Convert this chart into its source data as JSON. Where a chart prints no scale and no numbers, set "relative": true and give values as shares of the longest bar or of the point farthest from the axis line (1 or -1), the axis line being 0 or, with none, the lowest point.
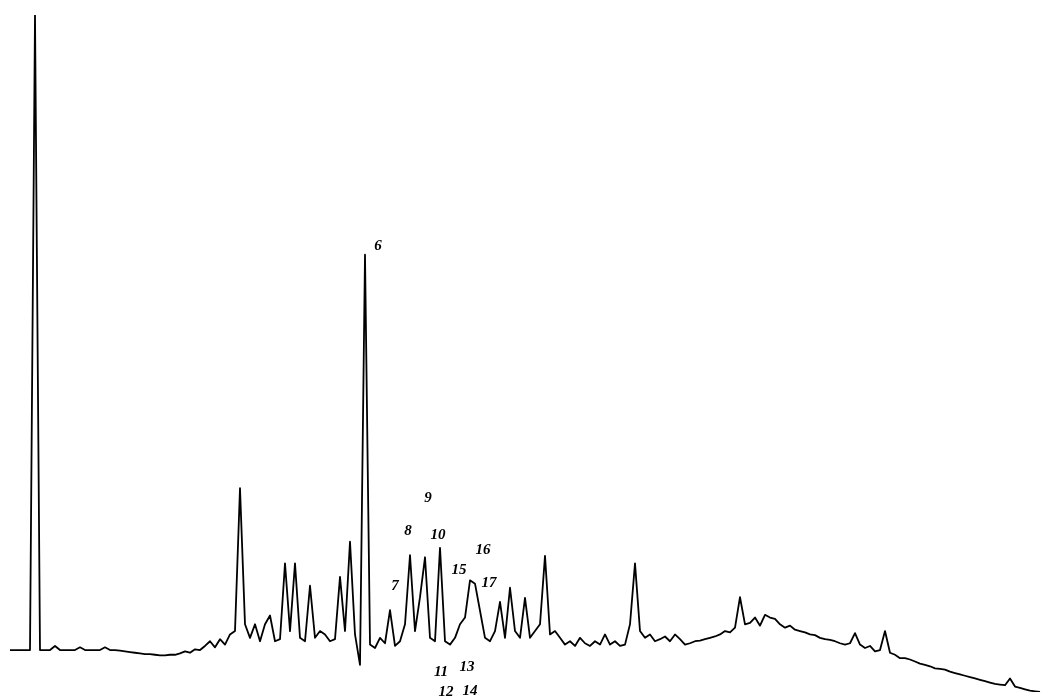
{
  "chart_data": {
    "type": "line",
    "relative": true,
    "legend": false,
    "marker": "none",
    "line_style": "solid",
    "categories": [
      null,
      null,
      null,
      null,
      null,
      null,
      null,
      null,
      null,
      null,
      null,
      null,
      null,
      null,
      null,
      null,
      null,
      null,
      null,
      null,
      null,
      null,
      null,
      null,
      null,
      null,
      null,
      null,
      null,
      null,
      null,
      null,
      null,
      null,
      null,
      null,
      null,
      null,
      null,
      null,
      null,
      null,
      null,
      null,
      null,
      null,
      null,
      null,
      null,
      null,
      null,
      null,
      null,
      null,
      null,
      null,
      null,
      null,
      null,
      null,
      null,
      null,
      null,
      null,
      null,
      null,
      null,
      null,
      null,
      null,
      null,
      null,
      null,
      null,
      null,
      null,
      null,
      null,
      null,
      null,
      null,
      null,
      null,
      null,
      null,
      null,
      null,
      null,
      null,
      null,
      null,
      null,
      null,
      null,
      null,
      null,
      null,
      null,
      null,
      null,
      null,
      null,
      null,
      null,
      null,
      null,
      null,
      null,
      null,
      null,
      null,
      null,
      null,
      null,
      null,
      null,
      null,
      null,
      null,
      null,
      null,
      null,
      null,
      null,
      null,
      null,
      null,
      null,
      null,
      null,
      null,
      null,
      null,
      null,
      null,
      null,
      null,
      null,
      null,
      null,
      null,
      null,
      null,
      null,
      null,
      null,
      null,
      null,
      null,
      null,
      null,
      null,
      null,
      null,
      null,
      null,
      null,
      null,
      null,
      null,
      null,
      null,
      null,
      null,
      null,
      null,
      null,
      null,
      null,
      null,
      null,
      null,
      null,
      null,
      null,
      null,
      null,
      null,
      null,
      null,
      null,
      null,
      null,
      null,
      null,
      null,
      null,
      null,
      null,
      null,
      null,
      null,
      null,
      null,
      null,
      null,
      null,
      null,
      null,
      null,
      null,
      null,
      null,
      null,
      null,
      null,
      null
    ],
    "series": [
      {
        "color": "#000000",
        "values": [
          0.062,
          0.062,
          0.062,
          0.062,
          0.062,
          1.0,
          0.062,
          0.062,
          0.062,
          0.068,
          0.062,
          0.062,
          0.062,
          0.062,
          0.066,
          0.062,
          0.062,
          0.062,
          0.062,
          0.066,
          0.062,
          0.062,
          0.061,
          0.06,
          0.059,
          0.058,
          0.057,
          0.056,
          0.056,
          0.055,
          0.054,
          0.054,
          0.055,
          0.055,
          0.057,
          0.06,
          0.058,
          0.063,
          0.062,
          0.068,
          0.075,
          0.066,
          0.078,
          0.07,
          0.085,
          0.09,
          0.301,
          0.1,
          0.08,
          0.1,
          0.075,
          0.1,
          0.113,
          0.075,
          0.078,
          0.19,
          0.09,
          0.19,
          0.08,
          0.075,
          0.157,
          0.08,
          0.09,
          0.085,
          0.075,
          0.078,
          0.17,
          0.09,
          0.222,
          0.085,
          0.04,
          0.646,
          0.07,
          0.065,
          0.08,
          0.072,
          0.121,
          0.068,
          0.075,
          0.1,
          0.202,
          0.09,
          0.14,
          0.199,
          0.08,
          0.075,
          0.213,
          0.075,
          0.07,
          0.08,
          0.1,
          0.11,
          0.165,
          0.16,
          0.12,
          0.08,
          0.075,
          0.09,
          0.133,
          0.08,
          0.154,
          0.09,
          0.08,
          0.139,
          0.08,
          0.09,
          0.1,
          0.201,
          0.085,
          0.09,
          0.08,
          0.07,
          0.075,
          0.068,
          0.08,
          0.072,
          0.068,
          0.075,
          0.07,
          0.085,
          0.07,
          0.075,
          0.068,
          0.07,
          0.1,
          0.19,
          0.09,
          0.08,
          0.085,
          0.075,
          0.078,
          0.082,
          0.075,
          0.085,
          0.078,
          0.07,
          0.072,
          0.075,
          0.076,
          0.078,
          0.08,
          0.082,
          0.085,
          0.09,
          0.088,
          0.095,
          0.14,
          0.1,
          0.102,
          0.11,
          0.098,
          0.114,
          0.11,
          0.108,
          0.1,
          0.095,
          0.098,
          0.092,
          0.09,
          0.088,
          0.085,
          0.084,
          0.08,
          0.078,
          0.077,
          0.075,
          0.072,
          0.07,
          0.072,
          0.087,
          0.07,
          0.065,
          0.068,
          0.06,
          0.062,
          0.09,
          0.058,
          0.055,
          0.05,
          0.05,
          0.048,
          0.045,
          0.042,
          0.04,
          0.038,
          0.035,
          0.034,
          0.033,
          0.03,
          0.028,
          0.026,
          0.024,
          0.022,
          0.02,
          0.018,
          0.016,
          0.014,
          0.012,
          0.011,
          0.01,
          0.02,
          0.008,
          0.006,
          0.004,
          0.002,
          0.001,
          0
        ]
      }
    ],
    "annotations": [
      "6",
      "7",
      "8",
      "9",
      "10",
      "11",
      "12",
      "13",
      "14",
      "15",
      "16",
      "17"
    ]
  }
}
